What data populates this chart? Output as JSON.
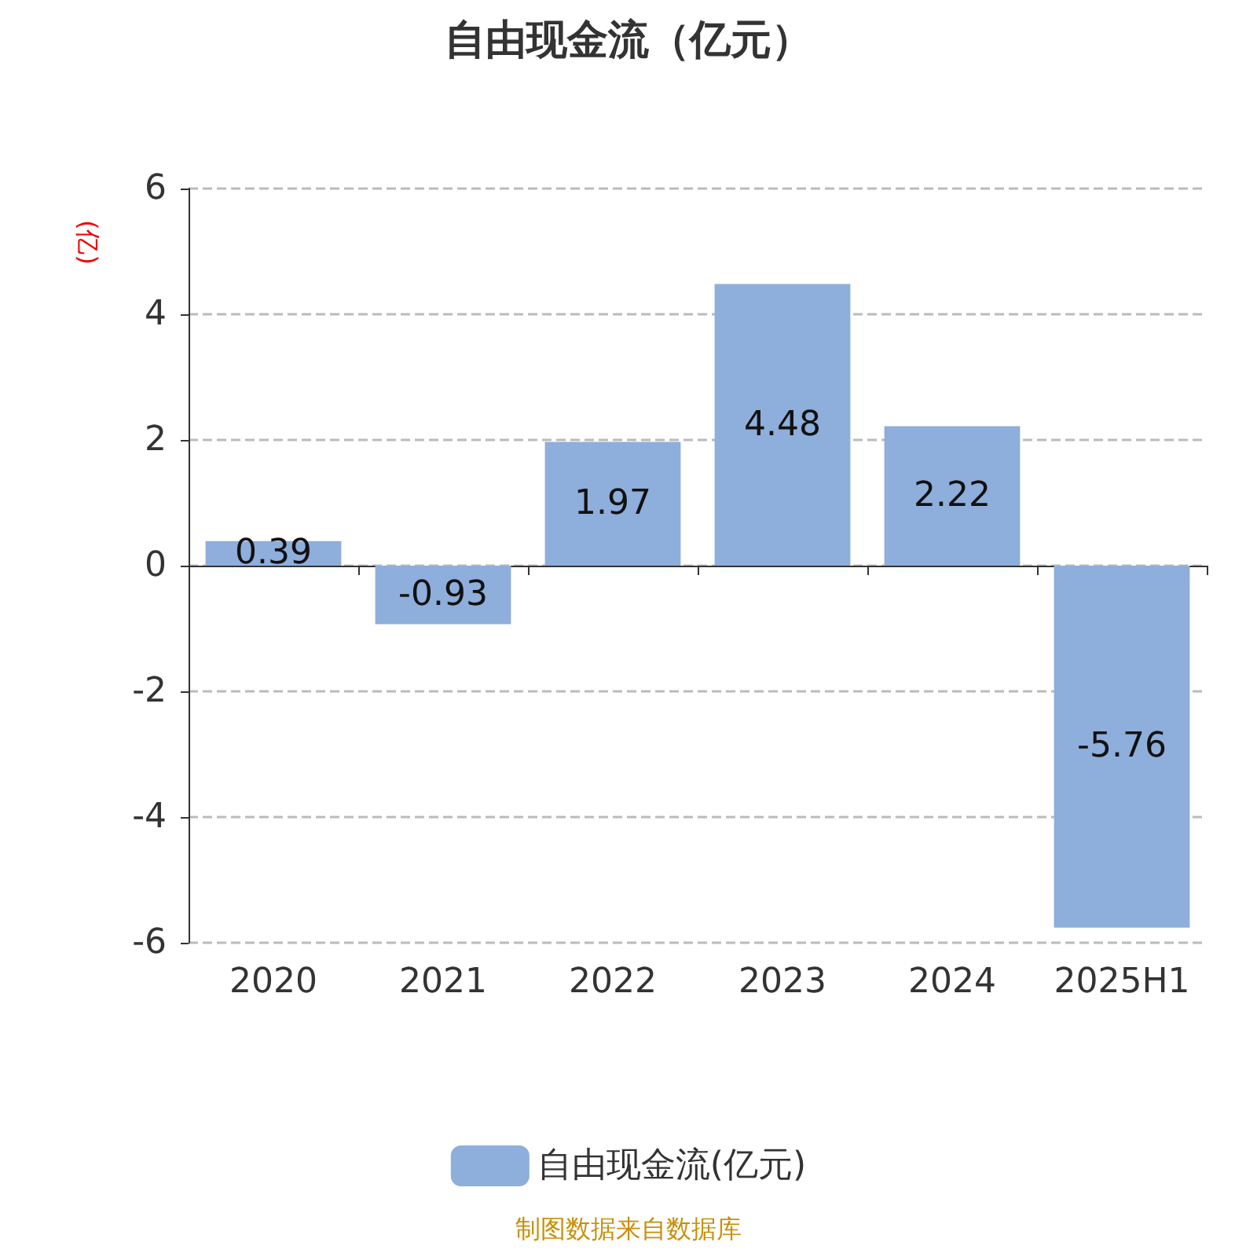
{
  "chart_data": {
    "type": "bar",
    "title": "自由现金流（亿元）",
    "ylabel": "(亿)",
    "categories": [
      "2020",
      "2021",
      "2022",
      "2023",
      "2024",
      "2025H1"
    ],
    "series": [
      {
        "name": "自由现金流(亿元)",
        "color": "#8eaedb",
        "values": [
          0.39,
          -0.93,
          1.97,
          4.48,
          2.22,
          -5.76
        ]
      }
    ],
    "ylim": [
      -6,
      6
    ],
    "yticks": [
      -6,
      -4,
      -2,
      0,
      2,
      4,
      6
    ],
    "grid": "y",
    "legend": "bottom",
    "data_labels": true,
    "annotations": [
      "制图数据来自数据库"
    ]
  }
}
